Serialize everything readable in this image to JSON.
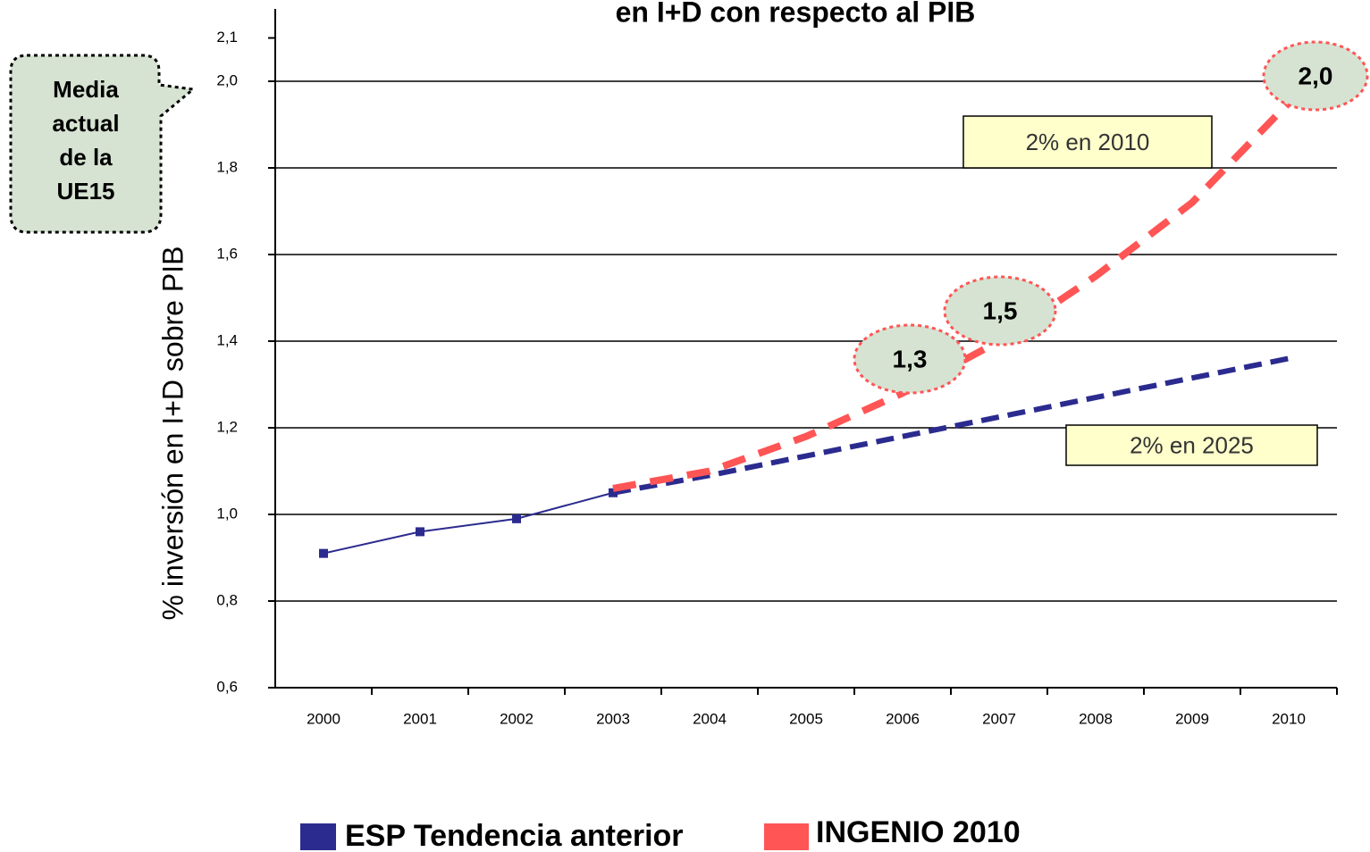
{
  "chart_data": {
    "type": "line",
    "title": "en I+D con respecto al PIB",
    "y_label": "% inversión en I+D sobre PIB",
    "categories": [
      "2000",
      "2001",
      "2002",
      "2003",
      "2004",
      "2005",
      "2006",
      "2007",
      "2008",
      "2009",
      "2010"
    ],
    "series": [
      {
        "name": "ESP Tendencia anterior",
        "color": "#2b2b8f",
        "dashed_from": "2003",
        "values": [
          0.91,
          0.96,
          0.99,
          1.05,
          1.09,
          1.135,
          1.18,
          1.225,
          1.27,
          1.315,
          1.36
        ]
      },
      {
        "name": "INGENIO 2010",
        "color": "#ff5555",
        "dashed_from": "2003",
        "values": [
          null,
          null,
          null,
          1.06,
          1.1,
          1.18,
          1.28,
          1.4,
          1.55,
          1.72,
          1.95
        ]
      }
    ],
    "ylim": [
      0.6,
      2.1
    ],
    "yticks": [
      {
        "value": 0.6,
        "label": "0,6"
      },
      {
        "value": 0.8,
        "label": "0,8"
      },
      {
        "value": 1.0,
        "label": "1,0"
      },
      {
        "value": 1.2,
        "label": "1,2"
      },
      {
        "value": 1.4,
        "label": "1,4"
      },
      {
        "value": 1.6,
        "label": "1,6"
      },
      {
        "value": 1.8,
        "label": "1,8"
      },
      {
        "value": 2.0,
        "label": "2,0"
      },
      {
        "value": 2.1,
        "label": "2,1"
      }
    ],
    "grid": true,
    "legend": "bottom",
    "bubbles": [
      "1,3",
      "1,5",
      "2,0"
    ],
    "boxes": [
      "2% en 2010",
      "2% en 2025"
    ],
    "callout": [
      "Media",
      "actual",
      "de la",
      "UE15"
    ]
  }
}
